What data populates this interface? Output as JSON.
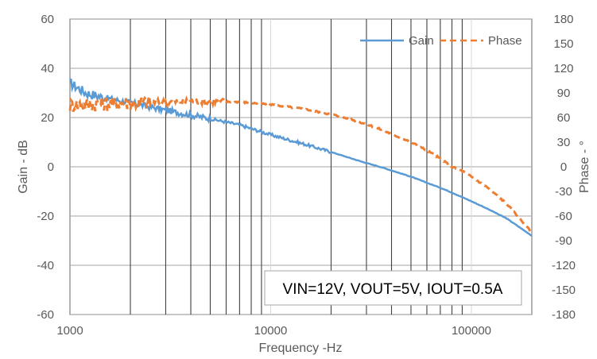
{
  "chart_data": {
    "type": "line",
    "title": "",
    "xlabel": "Frequency -Hz",
    "ylabel": "Gain - dB",
    "y2label": "Phase - °",
    "xscale": "log",
    "xlim": [
      1000,
      200000
    ],
    "ylim": [
      -60,
      60
    ],
    "y2lim": [
      -180,
      180
    ],
    "x_ticks": [
      "1000",
      "10000",
      "100000"
    ],
    "y_ticks": [
      "60",
      "40",
      "20",
      "0",
      "-20",
      "-40",
      "-60"
    ],
    "y2_ticks": [
      "180",
      "150",
      "120",
      "90",
      "60",
      "30",
      "0",
      "-30",
      "-60",
      "-90",
      "-120",
      "-150",
      "-180"
    ],
    "grid": true,
    "legend": "top-right",
    "series": [
      {
        "name": "Gain",
        "axis": "left",
        "color": "#5B9BD5",
        "style": "solid",
        "x": [
          1000,
          1100,
          1200,
          1500,
          2000,
          3000,
          4000,
          5000,
          7000,
          10000,
          15000,
          20000,
          25000,
          30000,
          35000,
          40000,
          50000,
          60000,
          70000,
          80000,
          100000,
          120000,
          150000,
          200000
        ],
        "values": [
          34,
          32,
          30,
          28,
          26,
          23,
          21,
          19.5,
          17,
          13,
          9,
          6,
          3.5,
          1.5,
          0,
          -1.5,
          -4,
          -6.5,
          -8.5,
          -10.5,
          -14,
          -17,
          -21,
          -28
        ]
      },
      {
        "name": "Phase",
        "axis": "right",
        "color": "#ED7D31",
        "style": "dashed",
        "x": [
          1000,
          1200,
          1500,
          2000,
          3000,
          4000,
          5000,
          7000,
          10000,
          15000,
          20000,
          25000,
          30000,
          35000,
          40000,
          50000,
          60000,
          70000,
          80000,
          90000,
          100000,
          120000,
          150000,
          200000
        ],
        "values": [
          75,
          76,
          77,
          78,
          79,
          80,
          80,
          79,
          76,
          70,
          64,
          58,
          52,
          46,
          40,
          30,
          20,
          10,
          0,
          -5,
          -12,
          -25,
          -45,
          -80
        ]
      }
    ],
    "annotation": "VIN=12V, VOUT=5V, IOUT=0.5A"
  }
}
